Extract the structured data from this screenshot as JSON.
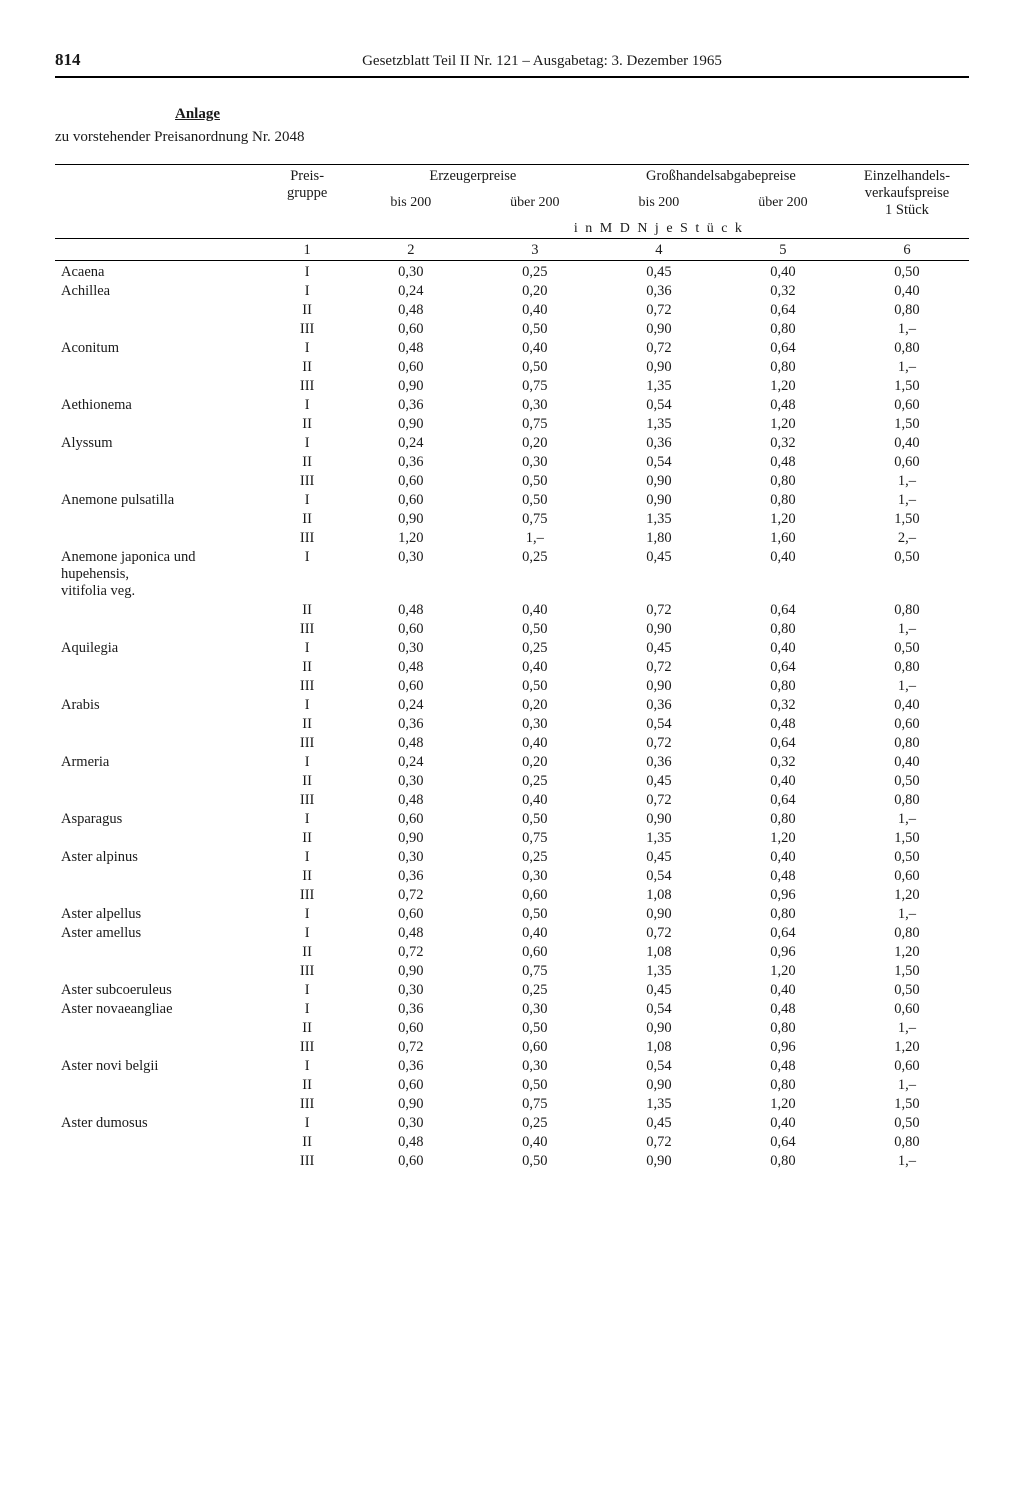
{
  "page_number": "814",
  "header": "Gesetzblatt Teil II Nr. 121 – Ausgabetag: 3. Dezember 1965",
  "anlage_label": "Anlage",
  "subtitle": "zu vorstehender Preisanordnung Nr. 2048",
  "columns": {
    "preisgruppe": "Preis-\ngruppe",
    "erzeuger": "Erzeugerpreise",
    "grosshandel": "Großhandelsabgabepreise",
    "einzelhandel": "Einzelhandels-\nverkaufspreise\n1 Stück",
    "bis200": "bis 200",
    "ueber200": "über 200",
    "unit": "i n   M D N   j e   S t ü c k",
    "colnums": [
      "1",
      "2",
      "3",
      "4",
      "5",
      "6"
    ]
  },
  "plants": [
    {
      "name": "Acaena",
      "rows": [
        [
          "I",
          "0,30",
          "0,25",
          "0,45",
          "0,40",
          "0,50"
        ]
      ]
    },
    {
      "name": "Achillea",
      "rows": [
        [
          "I",
          "0,24",
          "0,20",
          "0,36",
          "0,32",
          "0,40"
        ],
        [
          "II",
          "0,48",
          "0,40",
          "0,72",
          "0,64",
          "0,80"
        ],
        [
          "III",
          "0,60",
          "0,50",
          "0,90",
          "0,80",
          "1,–"
        ]
      ]
    },
    {
      "name": "Aconitum",
      "rows": [
        [
          "I",
          "0,48",
          "0,40",
          "0,72",
          "0,64",
          "0,80"
        ],
        [
          "II",
          "0,60",
          "0,50",
          "0,90",
          "0,80",
          "1,–"
        ],
        [
          "III",
          "0,90",
          "0,75",
          "1,35",
          "1,20",
          "1,50"
        ]
      ]
    },
    {
      "name": "Aethionema",
      "rows": [
        [
          "I",
          "0,36",
          "0,30",
          "0,54",
          "0,48",
          "0,60"
        ],
        [
          "II",
          "0,90",
          "0,75",
          "1,35",
          "1,20",
          "1,50"
        ]
      ]
    },
    {
      "name": "Alyssum",
      "rows": [
        [
          "I",
          "0,24",
          "0,20",
          "0,36",
          "0,32",
          "0,40"
        ],
        [
          "II",
          "0,36",
          "0,30",
          "0,54",
          "0,48",
          "0,60"
        ],
        [
          "III",
          "0,60",
          "0,50",
          "0,90",
          "0,80",
          "1,–"
        ]
      ]
    },
    {
      "name": "Anemone pulsatilla",
      "rows": [
        [
          "I",
          "0,60",
          "0,50",
          "0,90",
          "0,80",
          "1,–"
        ],
        [
          "II",
          "0,90",
          "0,75",
          "1,35",
          "1,20",
          "1,50"
        ],
        [
          "III",
          "1,20",
          "1,–",
          "1,80",
          "1,60",
          "2,–"
        ]
      ]
    },
    {
      "name": "Anemone japonica und\n          hupehensis,\n          vitifolia          veg.",
      "rows": [
        [
          "I",
          "0,30",
          "0,25",
          "0,45",
          "0,40",
          "0,50"
        ],
        [
          "II",
          "0,48",
          "0,40",
          "0,72",
          "0,64",
          "0,80"
        ],
        [
          "III",
          "0,60",
          "0,50",
          "0,90",
          "0,80",
          "1,–"
        ]
      ]
    },
    {
      "name": "Aquilegia",
      "rows": [
        [
          "I",
          "0,30",
          "0,25",
          "0,45",
          "0,40",
          "0,50"
        ],
        [
          "II",
          "0,48",
          "0,40",
          "0,72",
          "0,64",
          "0,80"
        ],
        [
          "III",
          "0,60",
          "0,50",
          "0,90",
          "0,80",
          "1,–"
        ]
      ]
    },
    {
      "name": "Arabis",
      "rows": [
        [
          "I",
          "0,24",
          "0,20",
          "0,36",
          "0,32",
          "0,40"
        ],
        [
          "II",
          "0,36",
          "0,30",
          "0,54",
          "0,48",
          "0,60"
        ],
        [
          "III",
          "0,48",
          "0,40",
          "0,72",
          "0,64",
          "0,80"
        ]
      ]
    },
    {
      "name": "Armeria",
      "rows": [
        [
          "I",
          "0,24",
          "0,20",
          "0,36",
          "0,32",
          "0,40"
        ],
        [
          "II",
          "0,30",
          "0,25",
          "0,45",
          "0,40",
          "0,50"
        ],
        [
          "III",
          "0,48",
          "0,40",
          "0,72",
          "0,64",
          "0,80"
        ]
      ]
    },
    {
      "name": "Asparagus",
      "rows": [
        [
          "I",
          "0,60",
          "0,50",
          "0,90",
          "0,80",
          "1,–"
        ],
        [
          "II",
          "0,90",
          "0,75",
          "1,35",
          "1,20",
          "1,50"
        ]
      ]
    },
    {
      "name": "Aster alpinus",
      "rows": [
        [
          "I",
          "0,30",
          "0,25",
          "0,45",
          "0,40",
          "0,50"
        ],
        [
          "II",
          "0,36",
          "0,30",
          "0,54",
          "0,48",
          "0,60"
        ],
        [
          "III",
          "0,72",
          "0,60",
          "1,08",
          "0,96",
          "1,20"
        ]
      ]
    },
    {
      "name": "Aster alpellus",
      "rows": [
        [
          "I",
          "0,60",
          "0,50",
          "0,90",
          "0,80",
          "1,–"
        ]
      ]
    },
    {
      "name": "Aster amellus",
      "rows": [
        [
          "I",
          "0,48",
          "0,40",
          "0,72",
          "0,64",
          "0,80"
        ],
        [
          "II",
          "0,72",
          "0,60",
          "1,08",
          "0,96",
          "1,20"
        ],
        [
          "III",
          "0,90",
          "0,75",
          "1,35",
          "1,20",
          "1,50"
        ]
      ]
    },
    {
      "name": "Aster subcoeruleus",
      "rows": [
        [
          "I",
          "0,30",
          "0,25",
          "0,45",
          "0,40",
          "0,50"
        ]
      ]
    },
    {
      "name": "Aster novaeangliae",
      "rows": [
        [
          "I",
          "0,36",
          "0,30",
          "0,54",
          "0,48",
          "0,60"
        ],
        [
          "II",
          "0,60",
          "0,50",
          "0,90",
          "0,80",
          "1,–"
        ],
        [
          "III",
          "0,72",
          "0,60",
          "1,08",
          "0,96",
          "1,20"
        ]
      ]
    },
    {
      "name": "Aster novi belgii",
      "rows": [
        [
          "I",
          "0,36",
          "0,30",
          "0,54",
          "0,48",
          "0,60"
        ],
        [
          "II",
          "0,60",
          "0,50",
          "0,90",
          "0,80",
          "1,–"
        ],
        [
          "III",
          "0,90",
          "0,75",
          "1,35",
          "1,20",
          "1,50"
        ]
      ]
    },
    {
      "name": "Aster dumosus",
      "rows": [
        [
          "I",
          "0,30",
          "0,25",
          "0,45",
          "0,40",
          "0,50"
        ],
        [
          "II",
          "0,48",
          "0,40",
          "0,72",
          "0,64",
          "0,80"
        ],
        [
          "III",
          "0,60",
          "0,50",
          "0,90",
          "0,80",
          "1,–"
        ]
      ]
    }
  ]
}
